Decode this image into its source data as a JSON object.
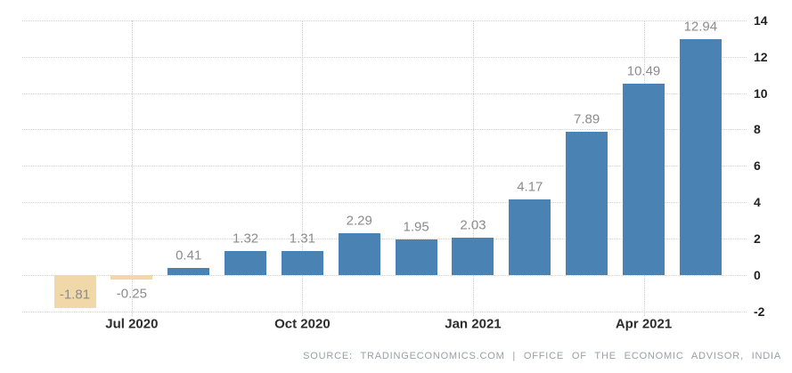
{
  "chart_data": {
    "type": "bar",
    "title": "",
    "xlabel": "",
    "ylabel": "",
    "values": [
      -1.81,
      -0.25,
      0.41,
      1.32,
      1.31,
      2.29,
      1.95,
      2.03,
      4.17,
      7.89,
      10.49,
      12.94
    ],
    "bar_labels": [
      "-1.81",
      "-0.25",
      "0.41",
      "1.32",
      "1.31",
      "2.29",
      "1.95",
      "2.03",
      "4.17",
      "7.89",
      "10.49",
      "12.94"
    ],
    "x_ticks": [
      {
        "bar_index": 1,
        "label": "Jul 2020"
      },
      {
        "bar_index": 4,
        "label": "Oct 2020"
      },
      {
        "bar_index": 7,
        "label": "Jan 2021"
      },
      {
        "bar_index": 10,
        "label": "Apr 2021"
      }
    ],
    "y_ticks": [
      -2,
      0,
      2,
      4,
      6,
      8,
      10,
      12,
      14
    ],
    "ylim": [
      -2,
      14
    ],
    "grid": "dotted",
    "legend": "none",
    "y_axis_position": "right",
    "colors": {
      "positive_bar": "#4a82b4",
      "negative_bar": "#f0d8a8",
      "value_label": "#8c8c8c",
      "axis_label": "#2d2d2d",
      "grid_line": "#d2d2d2",
      "source_text": "#9aa0a6"
    }
  },
  "footer": {
    "source": "SOURCE: TRADINGECONOMICS.COM | OFFICE OF THE ECONOMIC ADVISOR, INDIA"
  }
}
